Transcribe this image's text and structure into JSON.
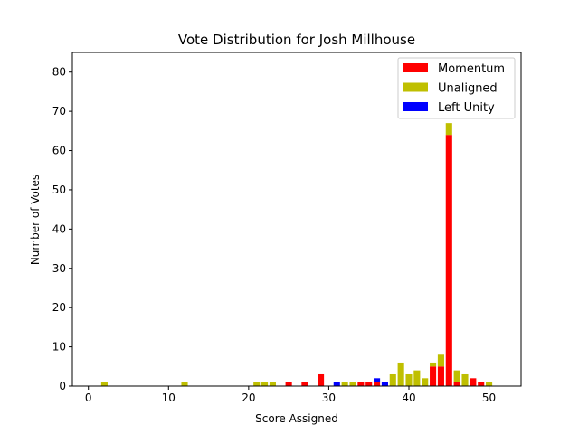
{
  "chart_data": {
    "type": "bar",
    "stacked": true,
    "title": "Vote Distribution for Josh Millhouse",
    "xlabel": "Score Assigned",
    "ylabel": "Number of Votes",
    "xlim": [
      -2,
      54
    ],
    "ylim": [
      0,
      85
    ],
    "xticks": [
      0,
      10,
      20,
      30,
      40,
      50
    ],
    "yticks": [
      0,
      10,
      20,
      30,
      40,
      50,
      60,
      70,
      80
    ],
    "legend_position": "top-right",
    "grid": false,
    "x": [
      2,
      12,
      21,
      22,
      23,
      25,
      27,
      29,
      31,
      32,
      33,
      34,
      35,
      36,
      37,
      38,
      39,
      40,
      41,
      42,
      43,
      44,
      45,
      46,
      47,
      48,
      49,
      50
    ],
    "series": [
      {
        "name": "Momentum",
        "color": "#ff0000",
        "values": [
          0,
          0,
          0,
          0,
          0,
          1,
          1,
          3,
          0,
          0,
          0,
          1,
          1,
          1,
          0,
          0,
          0,
          0,
          0,
          0,
          5,
          5,
          64,
          1,
          0,
          2,
          1,
          0
        ]
      },
      {
        "name": "Unaligned",
        "color": "#bfbf00",
        "values": [
          1,
          1,
          1,
          1,
          1,
          0,
          0,
          0,
          0,
          1,
          1,
          0,
          0,
          0,
          0,
          3,
          6,
          3,
          4,
          2,
          1,
          3,
          3,
          3,
          3,
          0,
          0,
          1
        ]
      },
      {
        "name": "Left Unity",
        "color": "#0000ff",
        "values": [
          0,
          0,
          0,
          0,
          0,
          0,
          0,
          0,
          1,
          0,
          0,
          0,
          0,
          1,
          1,
          0,
          0,
          0,
          0,
          0,
          0,
          0,
          0,
          0,
          0,
          0,
          0,
          0
        ]
      }
    ]
  }
}
